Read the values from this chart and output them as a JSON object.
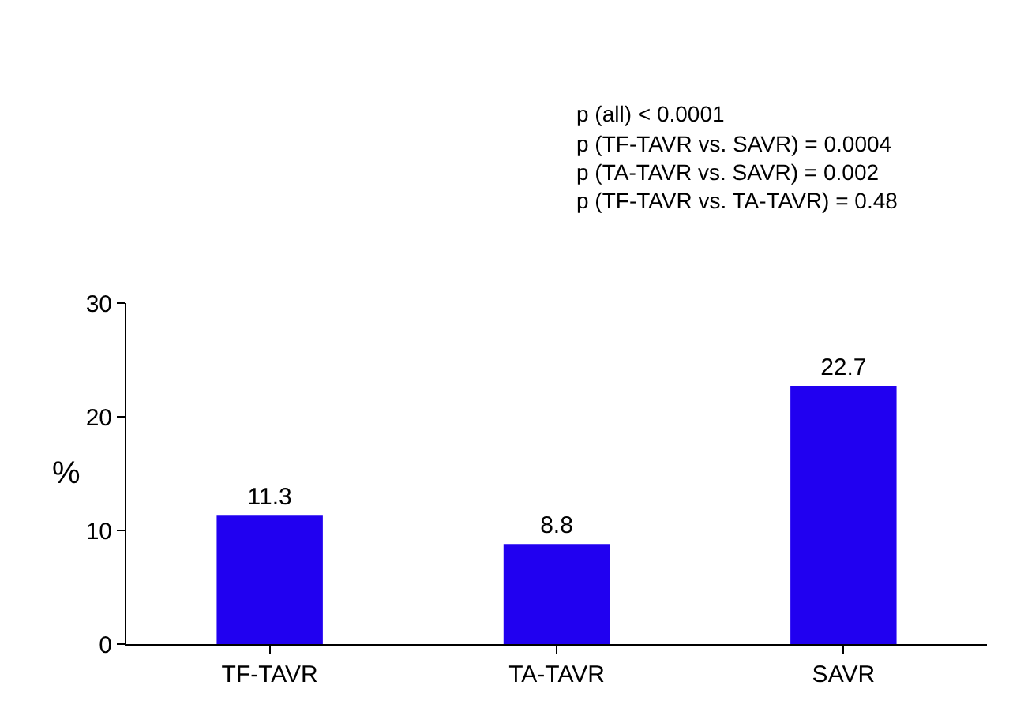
{
  "chart_data": {
    "type": "bar",
    "ylabel": "%",
    "categories": [
      "TF-TAVR",
      "TA-TAVR",
      "SAVR"
    ],
    "values": [
      11.3,
      8.8,
      22.7
    ],
    "color": "#2100f0",
    "ylim": [
      0,
      30
    ],
    "yticks": [
      0,
      10,
      20,
      30
    ],
    "data_labels": true,
    "annotations": [
      "p (all) < 0.0001",
      "p (TF-TAVR vs. SAVR) = 0.0004",
      "p (TA-TAVR vs. SAVR) = 0.002",
      "p (TF-TAVR vs. TA-TAVR) = 0.48"
    ]
  }
}
